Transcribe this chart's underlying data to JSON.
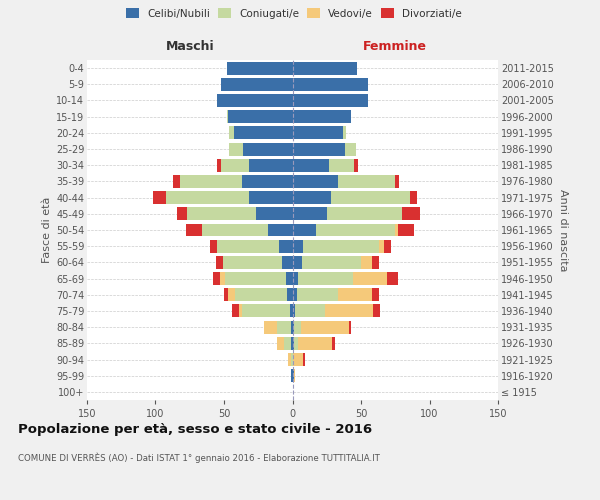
{
  "age_groups": [
    "100+",
    "95-99",
    "90-94",
    "85-89",
    "80-84",
    "75-79",
    "70-74",
    "65-69",
    "60-64",
    "55-59",
    "50-54",
    "45-49",
    "40-44",
    "35-39",
    "30-34",
    "25-29",
    "20-24",
    "15-19",
    "10-14",
    "5-9",
    "0-4"
  ],
  "birth_years": [
    "≤ 1915",
    "1916-1920",
    "1921-1925",
    "1926-1930",
    "1931-1935",
    "1936-1940",
    "1941-1945",
    "1946-1950",
    "1951-1955",
    "1956-1960",
    "1961-1965",
    "1966-1970",
    "1971-1975",
    "1976-1980",
    "1981-1985",
    "1986-1990",
    "1991-1995",
    "1996-2000",
    "2001-2005",
    "2006-2010",
    "2011-2015"
  ],
  "male": {
    "celibi": [
      0,
      1,
      0,
      1,
      1,
      2,
      4,
      5,
      8,
      10,
      18,
      27,
      32,
      37,
      32,
      36,
      43,
      47,
      55,
      52,
      48
    ],
    "coniugati": [
      0,
      0,
      1,
      5,
      10,
      35,
      38,
      44,
      43,
      45,
      48,
      50,
      60,
      45,
      20,
      10,
      3,
      1,
      0,
      0,
      0
    ],
    "vedovi": [
      0,
      0,
      2,
      5,
      10,
      2,
      5,
      4,
      0,
      0,
      0,
      0,
      0,
      0,
      0,
      0,
      0,
      0,
      0,
      0,
      0
    ],
    "divorziati": [
      0,
      0,
      0,
      0,
      0,
      5,
      3,
      5,
      5,
      5,
      12,
      7,
      10,
      5,
      3,
      0,
      0,
      0,
      0,
      0,
      0
    ]
  },
  "female": {
    "nubili": [
      0,
      1,
      0,
      1,
      1,
      2,
      3,
      4,
      7,
      8,
      17,
      25,
      28,
      33,
      27,
      38,
      37,
      43,
      55,
      55,
      47
    ],
    "coniugate": [
      0,
      0,
      0,
      3,
      5,
      22,
      30,
      40,
      43,
      55,
      58,
      55,
      58,
      42,
      18,
      8,
      2,
      0,
      0,
      0,
      0
    ],
    "vedove": [
      0,
      1,
      8,
      25,
      35,
      35,
      25,
      25,
      8,
      4,
      2,
      0,
      0,
      0,
      0,
      0,
      0,
      0,
      0,
      0,
      0
    ],
    "divorziate": [
      0,
      0,
      1,
      2,
      2,
      5,
      5,
      8,
      5,
      5,
      12,
      13,
      5,
      3,
      3,
      0,
      0,
      0,
      0,
      0,
      0
    ]
  },
  "colors": {
    "celibi": "#3a6fa8",
    "coniugati": "#c5d9a0",
    "vedovi": "#f5c97a",
    "divorziati": "#d93030"
  },
  "xlim": 150,
  "title": "Popolazione per età, sesso e stato civile - 2016",
  "subtitle": "COMUNE DI VERRÈS (AO) - Dati ISTAT 1° gennaio 2016 - Elaborazione TUTTITALIA.IT",
  "xlabel_left": "Maschi",
  "xlabel_right": "Femmine",
  "ylabel_left": "Fasce di età",
  "ylabel_right": "Anni di nascita",
  "legend_labels": [
    "Celibi/Nubili",
    "Coniugati/e",
    "Vedovi/e",
    "Divorziati/e"
  ],
  "bg_color": "#f0f0f0",
  "plot_bg": "#ffffff"
}
